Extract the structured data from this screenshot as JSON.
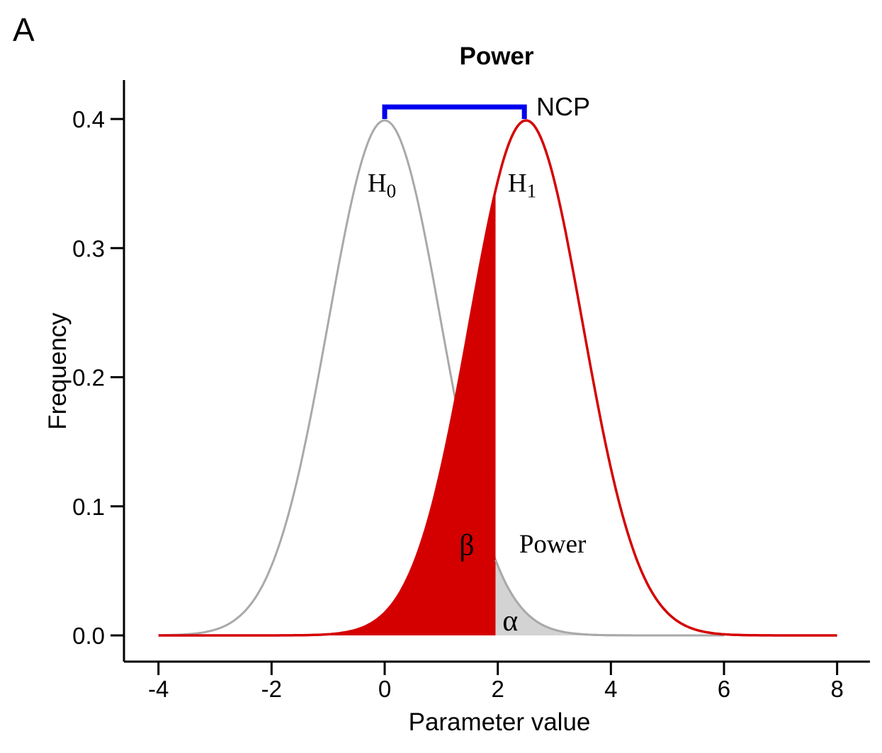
{
  "panel_label": "A",
  "colors": {
    "h0_curve": "#A9A9A9",
    "h1_curve": "#D40000",
    "beta_fill": "#D40000",
    "alpha_fill": "#D3D3D3",
    "bracket": "#0000EE",
    "axis": "#000000",
    "text": "#000000"
  },
  "chart_data": {
    "type": "area",
    "title": "Power",
    "xlabel": "Parameter value",
    "ylabel": "Frequency",
    "x_ticks": [
      -4,
      -2,
      0,
      2,
      4,
      6,
      8
    ],
    "y_ticks": [
      0.0,
      0.1,
      0.2,
      0.3,
      0.4
    ],
    "y_tick_labels": [
      "0.0",
      "0.1",
      "0.2",
      "0.3",
      "0.4"
    ],
    "xlim": [
      -4.6,
      8.6
    ],
    "ylim": [
      0,
      0.43
    ],
    "grid": false,
    "distributions": [
      {
        "name": "H0",
        "mean": 0,
        "sd": 1,
        "peak_density": 0.3989,
        "range": [
          -4,
          6
        ],
        "color": "#A9A9A9"
      },
      {
        "name": "H1",
        "mean": 2.5,
        "sd": 1,
        "peak_density": 0.3989,
        "range": [
          -4,
          8
        ],
        "color": "#D40000"
      }
    ],
    "critical_value": 1.96,
    "regions": [
      {
        "name": "beta",
        "label": "β",
        "under": "H1",
        "side": "left_of_critical",
        "fill": "#D40000"
      },
      {
        "name": "alpha",
        "label": "α",
        "under": "H0",
        "side": "right_of_critical",
        "fill": "#D3D3D3"
      }
    ],
    "ncp_bracket": {
      "label": "NCP",
      "from": 0,
      "to": 2.47,
      "color": "#0000EE"
    },
    "annotations": [
      {
        "id": "h0-label",
        "text": "H",
        "sub": "0",
        "x": -0.05,
        "y": 0.351
      },
      {
        "id": "h1-label",
        "text": "H",
        "sub": "1",
        "x": 2.43,
        "y": 0.351
      },
      {
        "id": "beta-label",
        "text": "β",
        "x": 1.45,
        "y": 0.071
      },
      {
        "id": "power-label",
        "text": "Power",
        "x": 2.97,
        "y": 0.0697
      },
      {
        "id": "alpha-label",
        "text": "α",
        "x": 2.22,
        "y": 0.011
      }
    ]
  }
}
